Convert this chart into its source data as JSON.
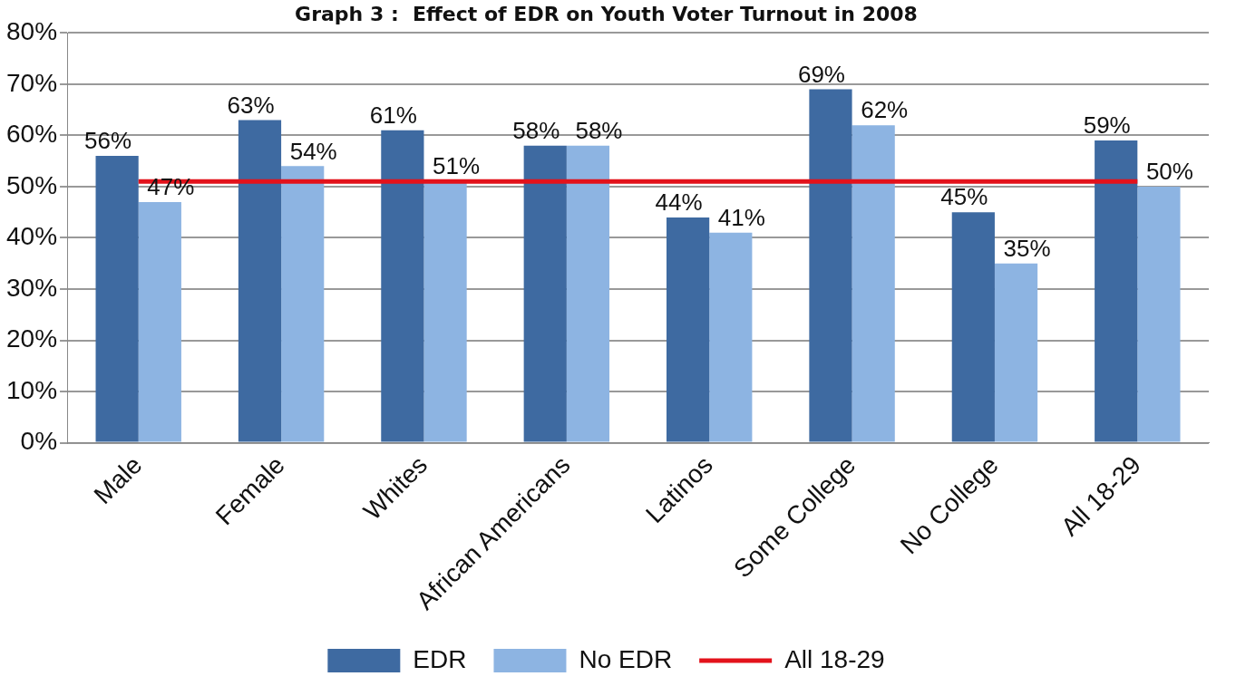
{
  "chart_data": {
    "type": "bar",
    "title": "Graph 3 :  Effect of EDR on Youth Voter Turnout in 2008",
    "categories": [
      "Male",
      "Female",
      "Whites",
      "African Americans",
      "Latinos",
      "Some College",
      "No College",
      "All 18-29"
    ],
    "series": [
      {
        "name": "EDR",
        "color": "#3e6aa1",
        "values": [
          56,
          63,
          61,
          58,
          44,
          69,
          45,
          59
        ],
        "value_labels": [
          "56%",
          "63%",
          "61%",
          "58%",
          "44%",
          "69%",
          "45%",
          "59%"
        ]
      },
      {
        "name": "No EDR",
        "color": "#8db4e2",
        "values": [
          47,
          54,
          51,
          58,
          41,
          62,
          35,
          50
        ],
        "value_labels": [
          "47%",
          "54%",
          "51%",
          "58%",
          "41%",
          "62%",
          "35%",
          "50%"
        ]
      },
      {
        "name": "All 18-29",
        "type": "line",
        "color": "#e3121b",
        "marker": "none",
        "values": [
          51,
          51,
          51,
          51,
          51,
          51,
          51,
          51
        ]
      }
    ],
    "ylim": [
      0,
      80
    ],
    "yticks": [
      {
        "value": 0,
        "label": "0%"
      },
      {
        "value": 10,
        "label": "10%"
      },
      {
        "value": 20,
        "label": "20%"
      },
      {
        "value": 30,
        "label": "30%"
      },
      {
        "value": 40,
        "label": "40%"
      },
      {
        "value": 50,
        "label": "50%"
      },
      {
        "value": 60,
        "label": "60%"
      },
      {
        "value": 70,
        "label": "70%"
      },
      {
        "value": 80,
        "label": "80%"
      }
    ],
    "grid": "y",
    "legend": "bottom"
  }
}
